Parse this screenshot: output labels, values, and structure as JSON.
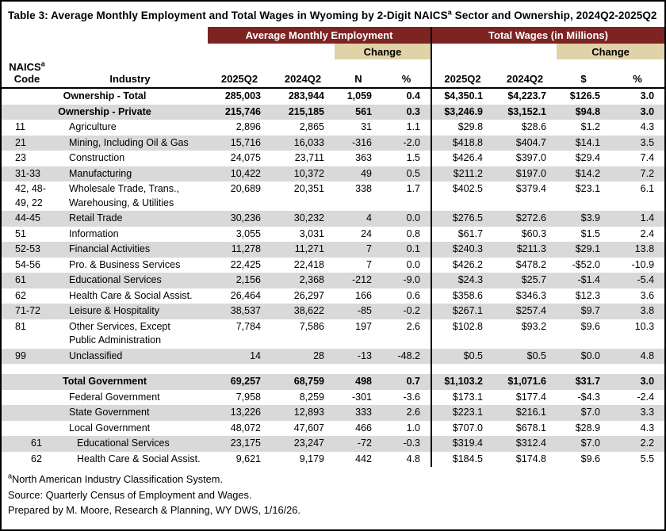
{
  "title": {
    "pre": "Table 3: Average Monthly Employment and Total Wages in Wyoming by 2-Digit NAICS",
    "sup": "a",
    "post": " Sector and Ownership, 2024Q2-2025Q2"
  },
  "colors": {
    "maroon_header": "#7D2423",
    "tan_change_band": "#E0D3A8",
    "row_stripe_gray": "#D9D9D9",
    "border_black": "#000000",
    "text": "#000000",
    "background": "#FFFFFF"
  },
  "header": {
    "group_employment": "Average Monthly Employment",
    "group_wages": "Total Wages (in Millions)",
    "change_label_employment": "Change",
    "change_label_wages": "Change",
    "columns": {
      "naics_line1": "NAICS",
      "naics_sup": "a",
      "naics_line2": "Code",
      "industry": "Industry",
      "emp_2025": "2025Q2",
      "emp_2024": "2024Q2",
      "emp_n": "N",
      "emp_pct": "%",
      "wages_2025": "2025Q2",
      "wages_2024": "2024Q2",
      "wages_dollar": "$",
      "wages_pct": "%"
    }
  },
  "table": {
    "rows": [
      {
        "section": true,
        "bold": true,
        "shaded": false,
        "label": "Ownership - Total",
        "e2025": "285,003",
        "e2024": "283,944",
        "n": "1,059",
        "epct": "0.4",
        "w2025": "$4,350.1",
        "w2024": "$4,223.7",
        "wchg": "$126.5",
        "wpct": "3.0"
      },
      {
        "section": true,
        "bold": true,
        "shaded": true,
        "label": "Ownership - Private",
        "e2025": "215,746",
        "e2024": "215,185",
        "n": "561",
        "epct": "0.3",
        "w2025": "$3,246.9",
        "w2024": "$3,152.1",
        "wchg": "$94.8",
        "wpct": "3.0"
      },
      {
        "code": "11",
        "industry": "Agriculture",
        "shaded": false,
        "e2025": "2,896",
        "e2024": "2,865",
        "n": "31",
        "epct": "1.1",
        "w2025": "$29.8",
        "w2024": "$28.6",
        "wchg": "$1.2",
        "wpct": "4.3"
      },
      {
        "code": "21",
        "industry": "Mining, Including Oil & Gas",
        "shaded": true,
        "e2025": "15,716",
        "e2024": "16,033",
        "n": "-316",
        "epct": "-2.0",
        "w2025": "$418.8",
        "w2024": "$404.7",
        "wchg": "$14.1",
        "wpct": "3.5"
      },
      {
        "code": "23",
        "industry": "Construction",
        "shaded": false,
        "e2025": "24,075",
        "e2024": "23,711",
        "n": "363",
        "epct": "1.5",
        "w2025": "$426.4",
        "w2024": "$397.0",
        "wchg": "$29.4",
        "wpct": "7.4"
      },
      {
        "code": "31-33",
        "industry": "Manufacturing",
        "shaded": true,
        "e2025": "10,422",
        "e2024": "10,372",
        "n": "49",
        "epct": "0.5",
        "w2025": "$211.2",
        "w2024": "$197.0",
        "wchg": "$14.2",
        "wpct": "7.2"
      },
      {
        "code": "42, 48-\n49, 22",
        "industry": "Wholesale Trade, Trans.,\nWarehousing, & Utilities",
        "shaded": false,
        "e2025": "20,689",
        "e2024": "20,351",
        "n": "338",
        "epct": "1.7",
        "w2025": "$402.5",
        "w2024": "$379.4",
        "wchg": "$23.1",
        "wpct": "6.1"
      },
      {
        "code": "44-45",
        "industry": "Retail Trade",
        "shaded": true,
        "e2025": "30,236",
        "e2024": "30,232",
        "n": "4",
        "epct": "0.0",
        "w2025": "$276.5",
        "w2024": "$272.6",
        "wchg": "$3.9",
        "wpct": "1.4"
      },
      {
        "code": "51",
        "industry": "Information",
        "shaded": false,
        "e2025": "3,055",
        "e2024": "3,031",
        "n": "24",
        "epct": "0.8",
        "w2025": "$61.7",
        "w2024": "$60.3",
        "wchg": "$1.5",
        "wpct": "2.4"
      },
      {
        "code": "52-53",
        "industry": "Financial Activities",
        "shaded": true,
        "e2025": "11,278",
        "e2024": "11,271",
        "n": "7",
        "epct": "0.1",
        "w2025": "$240.3",
        "w2024": "$211.3",
        "wchg": "$29.1",
        "wpct": "13.8"
      },
      {
        "code": "54-56",
        "industry": "Pro. & Business Services",
        "shaded": false,
        "e2025": "22,425",
        "e2024": "22,418",
        "n": "7",
        "epct": "0.0",
        "w2025": "$426.2",
        "w2024": "$478.2",
        "wchg": "-$52.0",
        "wpct": "-10.9"
      },
      {
        "code": "61",
        "industry": "Educational Services",
        "shaded": true,
        "e2025": "2,156",
        "e2024": "2,368",
        "n": "-212",
        "epct": "-9.0",
        "w2025": "$24.3",
        "w2024": "$25.7",
        "wchg": "-$1.4",
        "wpct": "-5.4"
      },
      {
        "code": "62",
        "industry": "Health Care & Social Assist.",
        "shaded": false,
        "e2025": "26,464",
        "e2024": "26,297",
        "n": "166",
        "epct": "0.6",
        "w2025": "$358.6",
        "w2024": "$346.3",
        "wchg": "$12.3",
        "wpct": "3.6"
      },
      {
        "code": "71-72",
        "industry": "Leisure & Hospitality",
        "shaded": true,
        "e2025": "38,537",
        "e2024": "38,622",
        "n": "-85",
        "epct": "-0.2",
        "w2025": "$267.1",
        "w2024": "$257.4",
        "wchg": "$9.7",
        "wpct": "3.8"
      },
      {
        "code": "81",
        "industry": "Other Services, Except\nPublic Administration",
        "shaded": false,
        "e2025": "7,784",
        "e2024": "7,586",
        "n": "197",
        "epct": "2.6",
        "w2025": "$102.8",
        "w2024": "$93.2",
        "wchg": "$9.6",
        "wpct": "10.3"
      },
      {
        "code": "99",
        "industry": "Unclassified",
        "shaded": true,
        "e2025": "14",
        "e2024": "28",
        "n": "-13",
        "epct": "-48.2",
        "w2025": "$0.5",
        "w2024": "$0.5",
        "wchg": "$0.0",
        "wpct": "4.8"
      },
      {
        "spacer": true
      },
      {
        "section": true,
        "bold": true,
        "shaded": true,
        "label": "Total Government",
        "e2025": "69,257",
        "e2024": "68,759",
        "n": "498",
        "epct": "0.7",
        "w2025": "$1,103.2",
        "w2024": "$1,071.6",
        "wchg": "$31.7",
        "wpct": "3.0"
      },
      {
        "code": "",
        "industry": "Federal Government",
        "shaded": false,
        "e2025": "7,958",
        "e2024": "8,259",
        "n": "-301",
        "epct": "-3.6",
        "w2025": "$173.1",
        "w2024": "$177.4",
        "wchg": "-$4.3",
        "wpct": "-2.4"
      },
      {
        "code": "",
        "industry": "State Government",
        "shaded": true,
        "e2025": "13,226",
        "e2024": "12,893",
        "n": "333",
        "epct": "2.6",
        "w2025": "$223.1",
        "w2024": "$216.1",
        "wchg": "$7.0",
        "wpct": "3.3"
      },
      {
        "code": "",
        "industry": "Local Government",
        "shaded": false,
        "e2025": "48,072",
        "e2024": "47,607",
        "n": "466",
        "epct": "1.0",
        "w2025": "$707.0",
        "w2024": "$678.1",
        "wchg": "$28.9",
        "wpct": "4.3"
      },
      {
        "code": "61",
        "industry": "Educational Services",
        "indent": true,
        "shaded": true,
        "e2025": "23,175",
        "e2024": "23,247",
        "n": "-72",
        "epct": "-0.3",
        "w2025": "$319.4",
        "w2024": "$312.4",
        "wchg": "$7.0",
        "wpct": "2.2"
      },
      {
        "code": "62",
        "industry": "Health Care & Social Assist.",
        "indent": true,
        "shaded": false,
        "e2025": "9,621",
        "e2024": "9,179",
        "n": "442",
        "epct": "4.8",
        "w2025": "$184.5",
        "w2024": "$174.8",
        "wchg": "$9.6",
        "wpct": "5.5"
      }
    ]
  },
  "footnotes": {
    "note1_sup": "a",
    "note1_text": "North American Industry Classification System.",
    "note2": "Source: Quarterly Census of Employment and Wages.",
    "note3": "Prepared by M. Moore, Research & Planning, WY DWS, 1/16/26."
  }
}
